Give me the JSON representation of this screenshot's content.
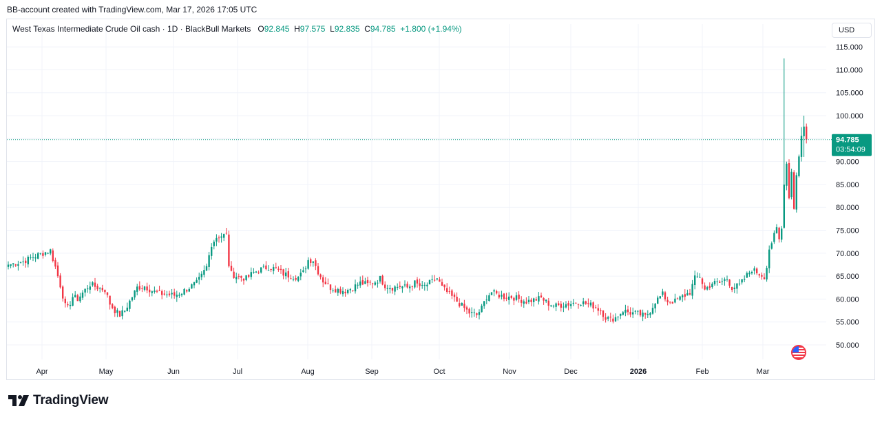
{
  "credit": "BB-account created with TradingView.com, Mar 17, 2026 17:05 UTC",
  "symbol": "West Texas Intermediate Crude Oil cash · 1D · BlackBull Markets",
  "ohlc": {
    "o_label": "O",
    "o": "92.845",
    "h_label": "H",
    "h": "97.575",
    "l_label": "L",
    "l": "92.835",
    "c_label": "C",
    "c": "94.785",
    "change": "+1.800 (+1.94%)"
  },
  "currency": "USD",
  "price_tag": {
    "price": "94.785",
    "countdown": "03:54:09"
  },
  "brand": "TradingView",
  "colors": {
    "up": "#089981",
    "down": "#f23645",
    "grid": "#f0f3fa",
    "tag": "#089981"
  },
  "chart_data": {
    "type": "candlestick",
    "ylim": [
      46,
      118
    ],
    "y_ticks": [
      "50.000",
      "55.000",
      "60.000",
      "65.000",
      "70.000",
      "75.000",
      "80.000",
      "85.000",
      "90.000",
      "95.000",
      "100.000",
      "105.000",
      "110.000",
      "115.000"
    ],
    "x_ticks": [
      "Apr",
      "May",
      "Jun",
      "Jul",
      "Aug",
      "Sep",
      "Oct",
      "Nov",
      "Dec",
      "2026",
      "Feb",
      "Mar"
    ],
    "last_price": 94.785,
    "anchors": [
      [
        0,
        67.5
      ],
      [
        6,
        68.2
      ],
      [
        10,
        69.2
      ],
      [
        14,
        70.0
      ],
      [
        17,
        70.6
      ],
      [
        19,
        67.0
      ],
      [
        21,
        63.0
      ],
      [
        23,
        58.5
      ],
      [
        24,
        58.0
      ],
      [
        26,
        60.5
      ],
      [
        28,
        60.0
      ],
      [
        31,
        62.0
      ],
      [
        33,
        63.2
      ],
      [
        36,
        62.5
      ],
      [
        39,
        62.0
      ],
      [
        41,
        59.0
      ],
      [
        43,
        57.5
      ],
      [
        45,
        56.5
      ],
      [
        47,
        57.5
      ],
      [
        49,
        59.5
      ],
      [
        52,
        62.5
      ],
      [
        55,
        62.8
      ],
      [
        58,
        61.8
      ],
      [
        61,
        61.2
      ],
      [
        64,
        61.0
      ],
      [
        67,
        60.8
      ],
      [
        70,
        61.5
      ],
      [
        73,
        62.5
      ],
      [
        76,
        63.5
      ],
      [
        78,
        65.0
      ],
      [
        80,
        67.0
      ],
      [
        82,
        72.0
      ],
      [
        84,
        73.5
      ],
      [
        86,
        73.8
      ],
      [
        88,
        74.0
      ],
      [
        89,
        67.5
      ],
      [
        90,
        65.5
      ],
      [
        93,
        64.8
      ],
      [
        96,
        64.5
      ],
      [
        99,
        65.8
      ],
      [
        102,
        66.5
      ],
      [
        105,
        67.0
      ],
      [
        108,
        66.5
      ],
      [
        111,
        65.5
      ],
      [
        114,
        65.0
      ],
      [
        117,
        64.8
      ],
      [
        119,
        65.8
      ],
      [
        121,
        68.5
      ],
      [
        123,
        68.5
      ],
      [
        125,
        66.0
      ],
      [
        127,
        64.0
      ],
      [
        130,
        62.5
      ],
      [
        133,
        62.0
      ],
      [
        136,
        61.8
      ],
      [
        139,
        62.5
      ],
      [
        142,
        63.5
      ],
      [
        145,
        63.2
      ],
      [
        148,
        63.8
      ],
      [
        150,
        64.5
      ],
      [
        152,
        63.0
      ],
      [
        155,
        62.5
      ],
      [
        158,
        62.8
      ],
      [
        161,
        62.5
      ],
      [
        164,
        63.5
      ],
      [
        167,
        62.5
      ],
      [
        170,
        63.5
      ],
      [
        173,
        64.5
      ],
      [
        175,
        62.5
      ],
      [
        177,
        61.5
      ],
      [
        179,
        60.5
      ],
      [
        181,
        59.5
      ],
      [
        183,
        58.5
      ],
      [
        186,
        57.0
      ],
      [
        189,
        56.5
      ],
      [
        191,
        58.0
      ],
      [
        193,
        60.5
      ],
      [
        195,
        61.5
      ],
      [
        197,
        61.0
      ],
      [
        200,
        60.5
      ],
      [
        203,
        60.5
      ],
      [
        206,
        60.0
      ],
      [
        209,
        59.5
      ],
      [
        212,
        59.8
      ],
      [
        215,
        60.2
      ],
      [
        218,
        59.0
      ],
      [
        221,
        58.5
      ],
      [
        224,
        58.8
      ],
      [
        227,
        59.0
      ],
      [
        230,
        59.5
      ],
      [
        233,
        59.0
      ],
      [
        236,
        58.5
      ],
      [
        239,
        57.5
      ],
      [
        241,
        56.0
      ],
      [
        243,
        55.5
      ],
      [
        245,
        56.0
      ],
      [
        248,
        57.5
      ],
      [
        251,
        57.0
      ],
      [
        254,
        56.8
      ],
      [
        257,
        56.2
      ],
      [
        259,
        57.5
      ],
      [
        261,
        59.5
      ],
      [
        264,
        61.0
      ],
      [
        266,
        59.5
      ],
      [
        269,
        59.5
      ],
      [
        272,
        60.5
      ],
      [
        275,
        61.5
      ],
      [
        277,
        64.5
      ],
      [
        279,
        65.0
      ],
      [
        281,
        62.0
      ],
      [
        284,
        63.5
      ],
      [
        287,
        63.5
      ],
      [
        290,
        64.5
      ],
      [
        292,
        62.5
      ],
      [
        295,
        63.0
      ],
      [
        297,
        64.5
      ],
      [
        300,
        66.5
      ],
      [
        303,
        65.5
      ],
      [
        305,
        65.0
      ],
      [
        306,
        67.0
      ],
      [
        307,
        71.0
      ],
      [
        308,
        71.5
      ],
      [
        309,
        74.0
      ],
      [
        310,
        75.5
      ],
      [
        311,
        73.0
      ],
      [
        312,
        76.0
      ],
      [
        313,
        85.0
      ],
      [
        314,
        90.0
      ],
      [
        315,
        82.0
      ],
      [
        316,
        88.0
      ],
      [
        317,
        80.0
      ],
      [
        318,
        87.0
      ],
      [
        319,
        91.0
      ],
      [
        320,
        96.0
      ],
      [
        321,
        97.5
      ],
      [
        322,
        94.785
      ]
    ],
    "spikes": [
      [
        313,
        112.5,
        80.0
      ],
      [
        320,
        97.5,
        90.0
      ],
      [
        321,
        100.0,
        91.0
      ]
    ]
  }
}
